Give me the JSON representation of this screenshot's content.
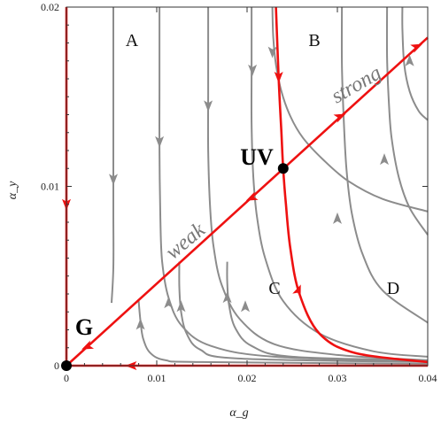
{
  "chart_data": {
    "type": "line",
    "xlabel": "α_g",
    "ylabel": "α_y",
    "xlim": [
      0,
      0.04
    ],
    "ylim": [
      0,
      0.02
    ],
    "x_ticks": [
      0,
      0.01,
      0.02,
      0.03,
      0.04
    ],
    "x_tick_labels": [
      "0",
      "0.01",
      "0.02",
      "0.03",
      "0.04"
    ],
    "y_ticks": [
      0,
      0.01,
      0.02
    ],
    "y_tick_labels": [
      "0",
      "0.01",
      "0.02"
    ],
    "fixed_points": [
      {
        "name": "G",
        "x": 0,
        "y": 0
      },
      {
        "name": "UV",
        "x": 0.024,
        "y": 0.011
      }
    ],
    "region_labels": [
      {
        "name": "A",
        "x": 0.0073,
        "y": 0.0181
      },
      {
        "name": "B",
        "x": 0.0277,
        "y": 0.0181
      },
      {
        "name": "C",
        "x": 0.0232,
        "y": 0.0043
      },
      {
        "name": "D",
        "x": 0.0365,
        "y": 0.0043
      }
    ],
    "line_labels": [
      {
        "name": "weak",
        "x": 0.0145,
        "y": 0.0071
      },
      {
        "name": "strong",
        "x": 0.0334,
        "y": 0.0155
      }
    ],
    "separatrices": [
      {
        "name": "y-axis",
        "points": [
          [
            0,
            0.02
          ],
          [
            0,
            0
          ]
        ]
      },
      {
        "name": "x-axis",
        "points": [
          [
            0.04,
            0
          ],
          [
            0,
            0
          ]
        ]
      },
      {
        "name": "diagonal",
        "points": [
          [
            0,
            0
          ],
          [
            0.04,
            0.0183
          ]
        ]
      },
      {
        "name": "curve",
        "points": [
          [
            0.0232,
            0.02
          ],
          [
            0.0235,
            0.016
          ],
          [
            0.0238,
            0.013
          ],
          [
            0.024,
            0.011
          ],
          [
            0.0243,
            0.009
          ],
          [
            0.0248,
            0.0065
          ],
          [
            0.0258,
            0.004
          ],
          [
            0.028,
            0.0018
          ],
          [
            0.032,
            0.0007
          ],
          [
            0.04,
            0.0002
          ]
        ]
      }
    ],
    "streamlines": [
      {
        "points": [
          [
            0.0052,
            0.02
          ],
          [
            0.0052,
            0.012
          ],
          [
            0.0052,
            0.0085
          ],
          [
            0.0052,
            0.0055
          ],
          [
            0.005,
            0.0035
          ]
        ]
      },
      {
        "points": [
          [
            0.0103,
            0.02
          ],
          [
            0.0103,
            0.0155
          ],
          [
            0.0103,
            0.012
          ],
          [
            0.0104,
            0.0082
          ],
          [
            0.0106,
            0.0058
          ],
          [
            0.0113,
            0.0038
          ],
          [
            0.0128,
            0.0022
          ],
          [
            0.016,
            0.0011
          ],
          [
            0.023,
            0.0005
          ],
          [
            0.04,
            0.0002
          ]
        ]
      },
      {
        "points": [
          [
            0.0157,
            0.02
          ],
          [
            0.0157,
            0.0155
          ],
          [
            0.0157,
            0.012
          ],
          [
            0.0159,
            0.0089
          ],
          [
            0.0163,
            0.0066
          ],
          [
            0.0172,
            0.0045
          ],
          [
            0.0192,
            0.0026
          ],
          [
            0.023,
            0.0012
          ],
          [
            0.03,
            0.0006
          ],
          [
            0.04,
            0.0003
          ]
        ]
      },
      {
        "points": [
          [
            0.0205,
            0.02
          ],
          [
            0.0205,
            0.0165
          ],
          [
            0.0205,
            0.0135
          ],
          [
            0.0207,
            0.0105
          ],
          [
            0.0211,
            0.0083
          ],
          [
            0.022,
            0.006
          ],
          [
            0.024,
            0.0036
          ],
          [
            0.028,
            0.0018
          ],
          [
            0.034,
            0.0008
          ],
          [
            0.04,
            0.0005
          ]
        ]
      },
      {
        "points": [
          [
            0.008,
            0.0036
          ],
          [
            0.0082,
            0.0025
          ],
          [
            0.0085,
            0.0015
          ],
          [
            0.0093,
            0.0007
          ],
          [
            0.011,
            0.0003
          ],
          [
            0.015,
            0.0002
          ],
          [
            0.04,
            0.0001
          ]
        ]
      },
      {
        "points": [
          [
            0.0125,
            0.0058
          ],
          [
            0.0125,
            0.0044
          ],
          [
            0.0127,
            0.003
          ],
          [
            0.0133,
            0.0018
          ],
          [
            0.0148,
            0.0009
          ],
          [
            0.019,
            0.0004
          ],
          [
            0.04,
            0.0002
          ]
        ]
      },
      {
        "points": [
          [
            0.0178,
            0.0058
          ],
          [
            0.0178,
            0.0047
          ],
          [
            0.018,
            0.0034
          ],
          [
            0.0187,
            0.0021
          ],
          [
            0.0205,
            0.0011
          ],
          [
            0.025,
            0.0005
          ],
          [
            0.04,
            0.0003
          ]
        ]
      },
      {
        "points": [
          [
            0.0305,
            0.02
          ],
          [
            0.0305,
            0.0168
          ],
          [
            0.0307,
            0.0138
          ],
          [
            0.031,
            0.011
          ],
          [
            0.0316,
            0.0085
          ],
          [
            0.0328,
            0.0062
          ],
          [
            0.035,
            0.0042
          ],
          [
            0.04,
            0.0024
          ]
        ]
      },
      {
        "points": [
          [
            0.0355,
            0.02
          ],
          [
            0.0355,
            0.0172
          ],
          [
            0.0357,
            0.0147
          ],
          [
            0.036,
            0.0127
          ],
          [
            0.0368,
            0.0105
          ],
          [
            0.038,
            0.0088
          ],
          [
            0.04,
            0.0073
          ]
        ]
      },
      {
        "points": [
          [
            0.0372,
            0.02
          ],
          [
            0.0372,
            0.0188
          ],
          [
            0.0374,
            0.0168
          ],
          [
            0.038,
            0.0153
          ],
          [
            0.039,
            0.0142
          ],
          [
            0.04,
            0.0137
          ]
        ]
      },
      {
        "points": [
          [
            0.0228,
            0.02
          ],
          [
            0.0229,
            0.0183
          ],
          [
            0.0232,
            0.0168
          ],
          [
            0.0238,
            0.0153
          ],
          [
            0.0248,
            0.0139
          ],
          [
            0.0262,
            0.0127
          ],
          [
            0.0284,
            0.0115
          ],
          [
            0.0312,
            0.0103
          ],
          [
            0.035,
            0.0093
          ],
          [
            0.04,
            0.0086
          ]
        ]
      }
    ],
    "colors": {
      "separatrix": "#ee1111",
      "streamline": "#8c8c8c",
      "point": "#000000"
    }
  }
}
